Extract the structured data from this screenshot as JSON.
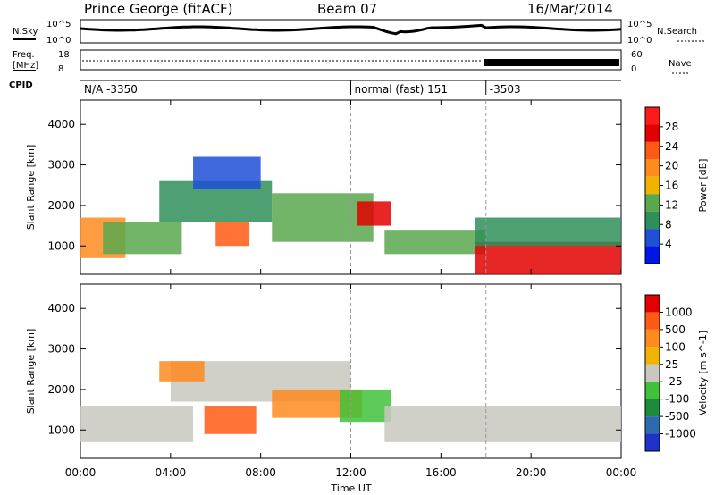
{
  "header": {
    "station": "Prince George (fitACF)",
    "beam": "Beam 07",
    "date": "16/Mar/2014"
  },
  "sidebar": {
    "nsky": "N.Sky",
    "freq": "Freq.",
    "freq_unit": "[MHz]",
    "cpid": "CPID",
    "nsearch": "N.Search",
    "nave": "Nave"
  },
  "strip_ticks": {
    "noise_top": "10^5",
    "noise_bottom": "10^0",
    "noise_right_top": "10^5",
    "noise_right_bottom": "10^0",
    "freq_top": "18",
    "freq_bottom": "8",
    "nave_top": "60",
    "nave_bottom": "0"
  },
  "cpid_labels": [
    {
      "text": "N/A -3350",
      "start_hour": 0
    },
    {
      "text": "normal (fast) 151",
      "start_hour": 12
    },
    {
      "text": "-3503",
      "start_hour": 18
    }
  ],
  "axes": {
    "xlabel": "Time UT",
    "ylabel": "Slant Range [km]",
    "x_ticks": [
      "00:00",
      "04:00",
      "08:00",
      "12:00",
      "16:00",
      "20:00",
      "00:00"
    ],
    "y_ticks": [
      "1000",
      "2000",
      "3000",
      "4000"
    ]
  },
  "power_colorbar": {
    "label": "Power [dB]",
    "ticks": [
      "4",
      "8",
      "12",
      "16",
      "20",
      "24",
      "28"
    ],
    "colors": [
      "#0016e6",
      "#1f4fd8",
      "#2f8f5a",
      "#5aa84d",
      "#f0b400",
      "#ff8a1e",
      "#ff5a14",
      "#e30000",
      "#ff1a1a"
    ]
  },
  "velocity_colorbar": {
    "label": "Velocity [m s^-1]",
    "ticks": [
      "1000",
      "500",
      "100",
      "25",
      "-25",
      "-100",
      "-500",
      "-1000"
    ],
    "colors": [
      "#1f33c8",
      "#2f6ab0",
      "#1e8a3c",
      "#3fc23a",
      "#c8c8c0",
      "#f0b400",
      "#ff8a1e",
      "#ff5a14",
      "#e30000"
    ]
  },
  "chart_data": [
    {
      "type": "heatmap",
      "title": "Power",
      "x_range_hours": [
        0,
        24
      ],
      "y_range_km": [
        300,
        4600
      ],
      "ylabel": "Slant Range [km]",
      "xlabel": "Time UT",
      "regions": [
        {
          "t0": 0.0,
          "t1": 2.0,
          "r0": 700,
          "r1": 1700,
          "level": 5
        },
        {
          "t0": 1.0,
          "t1": 4.5,
          "r0": 800,
          "r1": 1600,
          "level": 3
        },
        {
          "t0": 3.5,
          "t1": 8.5,
          "r0": 1600,
          "r1": 2600,
          "level": 2
        },
        {
          "t0": 5.0,
          "t1": 8.0,
          "r0": 2400,
          "r1": 3200,
          "level": 1
        },
        {
          "t0": 6.0,
          "t1": 7.5,
          "r0": 1000,
          "r1": 1600,
          "level": 6
        },
        {
          "t0": 8.5,
          "t1": 13.0,
          "r0": 1100,
          "r1": 2300,
          "level": 3
        },
        {
          "t0": 12.3,
          "t1": 13.8,
          "r0": 1500,
          "r1": 2100,
          "level": 7
        },
        {
          "t0": 13.5,
          "t1": 18.0,
          "r0": 800,
          "r1": 1400,
          "level": 3
        },
        {
          "t0": 17.5,
          "t1": 24.0,
          "r0": 300,
          "r1": 1100,
          "level": 7
        },
        {
          "t0": 17.5,
          "t1": 24.0,
          "r0": 1000,
          "r1": 1700,
          "level": 2
        }
      ]
    },
    {
      "type": "heatmap",
      "title": "Velocity",
      "x_range_hours": [
        0,
        24
      ],
      "y_range_km": [
        300,
        4600
      ],
      "ylabel": "Slant Range [km]",
      "xlabel": "Time UT",
      "regions": [
        {
          "t0": 0.0,
          "t1": 5.0,
          "r0": 700,
          "r1": 1600,
          "level": 4
        },
        {
          "t0": 4.0,
          "t1": 12.0,
          "r0": 1700,
          "r1": 2700,
          "level": 4
        },
        {
          "t0": 5.5,
          "t1": 7.8,
          "r0": 900,
          "r1": 1600,
          "level": 7
        },
        {
          "t0": 3.5,
          "t1": 5.5,
          "r0": 2200,
          "r1": 2700,
          "level": 6
        },
        {
          "t0": 8.5,
          "t1": 12.5,
          "r0": 1300,
          "r1": 2000,
          "level": 6
        },
        {
          "t0": 11.5,
          "t1": 13.8,
          "r0": 1200,
          "r1": 2000,
          "level": 3
        },
        {
          "t0": 13.5,
          "t1": 24.0,
          "r0": 700,
          "r1": 1600,
          "level": 4
        }
      ]
    }
  ]
}
